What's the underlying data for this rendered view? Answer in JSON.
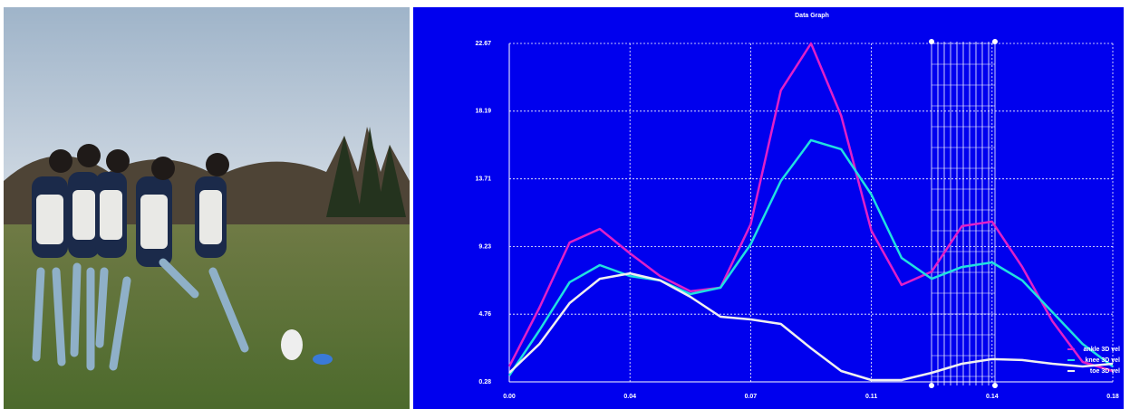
{
  "chart_data": {
    "type": "line",
    "title": "Data Graph",
    "x": [
      0,
      0.009,
      0.018,
      0.027,
      0.036,
      0.045,
      0.054,
      0.063,
      0.072,
      0.081,
      0.09,
      0.099,
      0.108,
      0.117,
      0.126,
      0.135,
      0.144,
      0.153,
      0.162,
      0.171,
      0.18
    ],
    "series": [
      {
        "name": "ankle 3D vel",
        "color": "#e020c8",
        "values": [
          1.3,
          5.19,
          9.5,
          10.4,
          8.78,
          7.28,
          6.27,
          6.51,
          10.7,
          19.56,
          22.67,
          17.88,
          10.28,
          6.69,
          7.58,
          10.58,
          10.88,
          7.88,
          4.29,
          1.6,
          1.0
        ]
      },
      {
        "name": "knee 3D vel",
        "color": "#20e0e0",
        "values": [
          0.7,
          3.69,
          6.87,
          8.0,
          7.28,
          6.99,
          6.09,
          6.51,
          9.38,
          13.57,
          16.27,
          15.67,
          12.67,
          8.48,
          7.1,
          7.88,
          8.18,
          6.99,
          4.89,
          2.79,
          1.3
        ]
      },
      {
        "name": "toe 3D vel",
        "color": "#f0f0f0",
        "values": [
          0.88,
          2.79,
          5.49,
          7.1,
          7.46,
          6.99,
          5.91,
          4.59,
          4.41,
          4.11,
          2.5,
          1.0,
          0.4,
          0.4,
          0.88,
          1.48,
          1.78,
          1.72,
          1.48,
          1.3,
          1.48
        ]
      }
    ],
    "xlim": [
      0,
      0.18
    ],
    "xticks": [
      {
        "value": 0,
        "label": "0.00"
      },
      {
        "value": 0.036,
        "label": "0.04"
      },
      {
        "value": 0.072,
        "label": "0.07"
      },
      {
        "value": 0.108,
        "label": "0.11"
      },
      {
        "value": 0.144,
        "label": "0.14"
      },
      {
        "value": 0.18,
        "label": "0.18"
      }
    ],
    "ylim": [
      0.28,
      22.67
    ],
    "yticks": [
      0.28,
      4.76,
      9.23,
      13.71,
      18.19,
      22.67
    ],
    "grid": true,
    "legend": "lower-right"
  }
}
